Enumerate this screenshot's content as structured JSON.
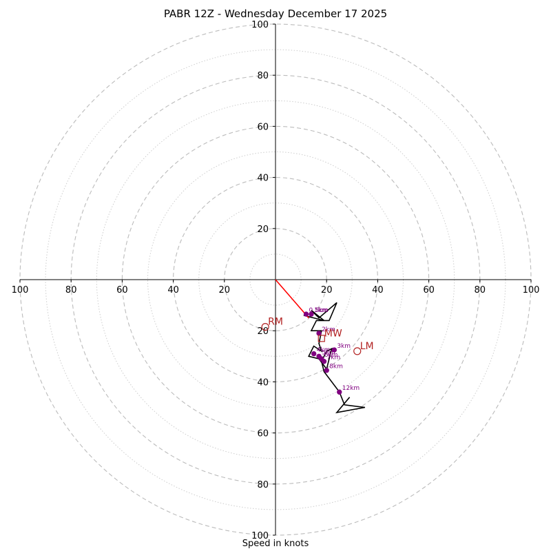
{
  "chart_data": {
    "type": "hodograph",
    "title": "PABR 12Z - Wednesday December 17 2025",
    "xlabel": "Speed in knots",
    "range": [
      -100,
      100
    ],
    "major_rings": [
      20,
      40,
      60,
      80,
      100
    ],
    "minor_rings": [
      10,
      30,
      50,
      70,
      90
    ],
    "x_ticks": [
      {
        "value": -100,
        "label": "100"
      },
      {
        "value": -80,
        "label": "80"
      },
      {
        "value": -60,
        "label": "60"
      },
      {
        "value": -40,
        "label": "40"
      },
      {
        "value": -20,
        "label": "20"
      },
      {
        "value": 20,
        "label": "20"
      },
      {
        "value": 40,
        "label": "40"
      },
      {
        "value": 60,
        "label": "60"
      },
      {
        "value": 80,
        "label": "80"
      },
      {
        "value": 100,
        "label": "100"
      }
    ],
    "y_ticks": [
      {
        "value": 100,
        "label": "100"
      },
      {
        "value": 80,
        "label": "80"
      },
      {
        "value": 60,
        "label": "60"
      },
      {
        "value": 40,
        "label": "40"
      },
      {
        "value": 20,
        "label": "20"
      },
      {
        "value": -20,
        "label": "20"
      },
      {
        "value": -40,
        "label": "40"
      },
      {
        "value": -60,
        "label": "60"
      },
      {
        "value": -80,
        "label": "80"
      },
      {
        "value": -100,
        "label": "100"
      }
    ],
    "wind_trace": {
      "color": "#000000",
      "points": [
        [
          11,
          -14
        ],
        [
          19,
          -16
        ],
        [
          14,
          -12
        ],
        [
          17,
          -15
        ],
        [
          24,
          -9
        ],
        [
          21,
          -16
        ],
        [
          16,
          -16
        ],
        [
          14,
          -20
        ],
        [
          18,
          -20
        ],
        [
          17,
          -25
        ],
        [
          18,
          -28
        ],
        [
          15,
          -26
        ],
        [
          13,
          -30
        ],
        [
          17,
          -31
        ],
        [
          20,
          -35
        ],
        [
          22,
          -27
        ],
        [
          20,
          -28
        ],
        [
          18,
          -32
        ],
        [
          19,
          -36
        ],
        [
          25,
          -44
        ],
        [
          27,
          -49
        ],
        [
          35,
          -50
        ],
        [
          24,
          -52
        ],
        [
          29,
          -46
        ]
      ]
    },
    "shear_vector": {
      "color": "#ff0000",
      "from": [
        0,
        0
      ],
      "to": [
        13,
        -15
      ]
    },
    "height_markers": [
      {
        "label": "1km",
        "u": 14,
        "v": -13.5
      },
      {
        "label": "0.5km",
        "u": 12,
        "v": -13.5
      },
      {
        "label": "2km",
        "u": 17,
        "v": -21
      },
      {
        "label": "3km",
        "u": 23,
        "v": -27.5
      },
      {
        "label": "4km",
        "u": 15,
        "v": -29
      },
      {
        "label": "5km",
        "u": 17,
        "v": -30
      },
      {
        "label": "6km",
        "u": 18,
        "v": -31
      },
      {
        "label": "7km",
        "u": 19,
        "v": -32
      },
      {
        "label": "8km",
        "u": 20,
        "v": -35.5
      },
      {
        "label": "12km",
        "u": 25,
        "v": -44
      }
    ],
    "storm_motions": [
      {
        "label": "RM",
        "u": -4,
        "v": -18.5,
        "marker": "circle"
      },
      {
        "label": "LM",
        "u": 32,
        "v": -28,
        "marker": "circle"
      },
      {
        "label": "MW",
        "u": 18,
        "v": -23,
        "marker": "square"
      }
    ],
    "colors": {
      "ring": "#bbbbbb",
      "trace": "#000000",
      "marker": "#800080",
      "storm_motion": "#b22222",
      "shear": "#ff0000",
      "axis": "#000000"
    }
  }
}
